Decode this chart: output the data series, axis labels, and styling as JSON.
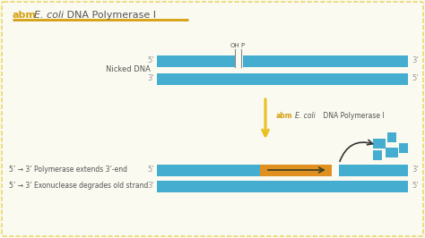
{
  "bg_color": "#fafaf0",
  "border_color": "#e8d050",
  "title_abm": "abm",
  "title_ecoli": "E. coli",
  "title_rest": " DNA Polymerase I",
  "title_color_abm": "#d4a010",
  "blue_color": "#45aed0",
  "orange_color": "#e09020",
  "yellow_arrow_color": "#e8c020",
  "nick_label": "Nicked DNA",
  "label1": "5’ → 3’ Polymerase extends 3’-end",
  "label2": "5’ → 3’ Exonuclease degrades old strand",
  "enzyme_abm": "abm",
  "enzyme_ecoli": "E. coli",
  "enzyme_rest": " DNA Polymerase I",
  "oh_label": "OH",
  "p_label": "P",
  "gray": "#888888",
  "dark_gray": "#555555",
  "light_gray": "#999999"
}
